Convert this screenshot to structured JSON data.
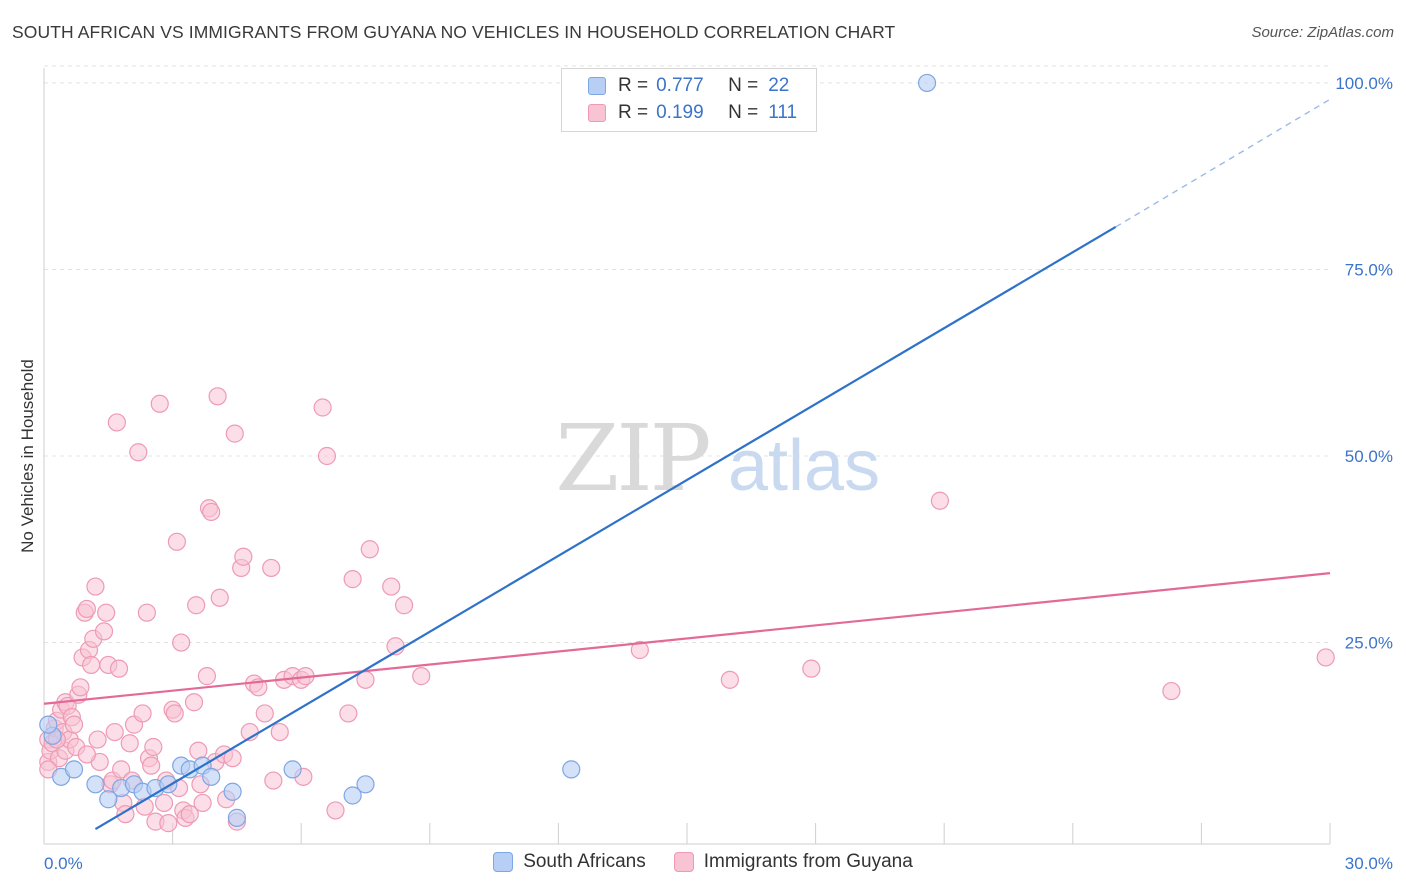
{
  "title": "SOUTH AFRICAN VS IMMIGRANTS FROM GUYANA NO VEHICLES IN HOUSEHOLD CORRELATION CHART",
  "source": "Source: ZipAtlas.com",
  "watermark": {
    "zip": "ZIP",
    "atlas": "atlas"
  },
  "colors": {
    "blue_fill": "#b7cff5",
    "blue_stroke": "#7ea6e3",
    "blue_line": "#2f72c9",
    "pink_fill": "#f8c3d3",
    "pink_stroke": "#ee9ab5",
    "pink_line": "#e36a97",
    "tick_blue": "#3b74c9"
  },
  "legend": {
    "rows": [
      {
        "r_label": "R =",
        "r_value": "0.777",
        "n_label": "N =",
        "n_value": "22"
      },
      {
        "r_label": "R =",
        "r_value": "0.199",
        "n_label": "N =",
        "n_value": "111"
      }
    ]
  },
  "chart_data": {
    "type": "scatter",
    "title": "SOUTH AFRICAN VS IMMIGRANTS FROM GUYANA NO VEHICLES IN HOUSEHOLD CORRELATION CHART",
    "xlabel": "",
    "ylabel": "No Vehicles in Household",
    "xlim": [
      0,
      30
    ],
    "ylim": [
      -2,
      102
    ],
    "x_tick_labels": [
      "0.0%",
      "30.0%"
    ],
    "y_ticks": [
      25,
      50,
      75,
      100
    ],
    "y_tick_labels": [
      "25.0%",
      "50.0%",
      "75.0%",
      "100.0%"
    ],
    "grid": true,
    "legend_position": "bottom",
    "series": [
      {
        "name": "South Africans",
        "r": 0.777,
        "n": 22,
        "trend": {
          "x1": 1.2,
          "y1": 0.0,
          "x2": 25.0,
          "y2": 80.7,
          "dash_to_x": 30.0,
          "dash_to_y": 97.8
        },
        "points": [
          [
            0.2,
            12.5
          ],
          [
            0.4,
            7.0
          ],
          [
            0.7,
            8.0
          ],
          [
            1.2,
            6.0
          ],
          [
            1.5,
            4.0
          ],
          [
            1.8,
            5.5
          ],
          [
            2.1,
            6.0
          ],
          [
            2.3,
            5.0
          ],
          [
            2.6,
            5.5
          ],
          [
            2.9,
            6.0
          ],
          [
            3.2,
            8.5
          ],
          [
            3.4,
            8.0
          ],
          [
            3.7,
            8.5
          ],
          [
            3.9,
            7.0
          ],
          [
            4.4,
            5.0
          ],
          [
            4.5,
            1.5
          ],
          [
            5.8,
            8.0
          ],
          [
            7.2,
            4.5
          ],
          [
            7.5,
            6.0
          ],
          [
            12.3,
            8.0
          ],
          [
            20.6,
            100.0
          ],
          [
            0.1,
            14.0
          ]
        ]
      },
      {
        "name": "Immigrants from Guyana",
        "r": 0.199,
        "n": 111,
        "trend": {
          "x1": 0.0,
          "y1": 16.8,
          "x2": 30.0,
          "y2": 34.3
        },
        "points": [
          [
            0.1,
            12.0
          ],
          [
            0.1,
            9.0
          ],
          [
            0.15,
            10.5
          ],
          [
            0.2,
            11.5
          ],
          [
            0.25,
            13.5
          ],
          [
            0.3,
            14.5
          ],
          [
            0.35,
            9.5
          ],
          [
            0.4,
            16.0
          ],
          [
            0.45,
            13.0
          ],
          [
            0.5,
            10.5
          ],
          [
            0.5,
            17.0
          ],
          [
            0.55,
            16.5
          ],
          [
            0.6,
            12.0
          ],
          [
            0.65,
            15.0
          ],
          [
            0.7,
            14.0
          ],
          [
            0.75,
            11.0
          ],
          [
            0.8,
            18.0
          ],
          [
            0.85,
            19.0
          ],
          [
            0.9,
            23.0
          ],
          [
            0.95,
            29.0
          ],
          [
            1.0,
            29.5
          ],
          [
            1.05,
            24.0
          ],
          [
            1.1,
            22.0
          ],
          [
            1.15,
            25.5
          ],
          [
            1.2,
            32.5
          ],
          [
            1.25,
            12.0
          ],
          [
            1.3,
            9.0
          ],
          [
            1.4,
            26.5
          ],
          [
            1.45,
            29.0
          ],
          [
            1.5,
            22.0
          ],
          [
            1.55,
            6.0
          ],
          [
            1.6,
            6.5
          ],
          [
            1.65,
            13.0
          ],
          [
            1.7,
            54.5
          ],
          [
            1.75,
            21.5
          ],
          [
            1.8,
            8.0
          ],
          [
            1.85,
            3.5
          ],
          [
            1.9,
            2.0
          ],
          [
            2.0,
            11.5
          ],
          [
            2.05,
            6.5
          ],
          [
            2.1,
            14.0
          ],
          [
            2.2,
            50.5
          ],
          [
            2.3,
            15.5
          ],
          [
            2.4,
            29.0
          ],
          [
            2.45,
            9.5
          ],
          [
            2.5,
            8.5
          ],
          [
            2.55,
            11.0
          ],
          [
            2.6,
            1.0
          ],
          [
            2.7,
            57.0
          ],
          [
            2.8,
            3.5
          ],
          [
            2.85,
            6.5
          ],
          [
            2.9,
            0.8
          ],
          [
            3.0,
            16.0
          ],
          [
            3.05,
            15.5
          ],
          [
            3.1,
            38.5
          ],
          [
            3.15,
            5.5
          ],
          [
            3.2,
            25.0
          ],
          [
            3.25,
            2.5
          ],
          [
            3.3,
            1.5
          ],
          [
            3.4,
            2.0
          ],
          [
            3.5,
            17.0
          ],
          [
            3.55,
            30.0
          ],
          [
            3.6,
            10.5
          ],
          [
            3.7,
            3.5
          ],
          [
            3.8,
            20.5
          ],
          [
            3.85,
            43.0
          ],
          [
            3.9,
            42.5
          ],
          [
            4.0,
            9.0
          ],
          [
            4.05,
            58.0
          ],
          [
            4.1,
            31.0
          ],
          [
            4.2,
            10.0
          ],
          [
            4.4,
            9.5
          ],
          [
            4.45,
            53.0
          ],
          [
            4.5,
            1.0
          ],
          [
            4.6,
            35.0
          ],
          [
            4.65,
            36.5
          ],
          [
            4.8,
            13.0
          ],
          [
            4.9,
            19.5
          ],
          [
            5.0,
            19.0
          ],
          [
            5.15,
            15.5
          ],
          [
            5.3,
            35.0
          ],
          [
            5.35,
            6.5
          ],
          [
            5.6,
            20.0
          ],
          [
            5.8,
            20.5
          ],
          [
            6.0,
            20.0
          ],
          [
            6.05,
            7.0
          ],
          [
            6.1,
            20.5
          ],
          [
            6.5,
            56.5
          ],
          [
            6.6,
            50.0
          ],
          [
            6.8,
            2.5
          ],
          [
            7.1,
            15.5
          ],
          [
            7.2,
            33.5
          ],
          [
            7.5,
            20.0
          ],
          [
            7.6,
            37.5
          ],
          [
            8.1,
            32.5
          ],
          [
            8.2,
            24.5
          ],
          [
            8.4,
            30.0
          ],
          [
            8.8,
            20.5
          ],
          [
            13.9,
            24.0
          ],
          [
            16.0,
            20.0
          ],
          [
            17.9,
            21.5
          ],
          [
            20.9,
            44.0
          ],
          [
            26.3,
            18.5
          ],
          [
            29.9,
            23.0
          ],
          [
            0.1,
            8.0
          ],
          [
            0.3,
            12.0
          ],
          [
            1.0,
            10.0
          ],
          [
            2.35,
            3.0
          ],
          [
            3.65,
            6.0
          ],
          [
            4.25,
            4.0
          ],
          [
            5.5,
            13.0
          ]
        ]
      }
    ]
  }
}
